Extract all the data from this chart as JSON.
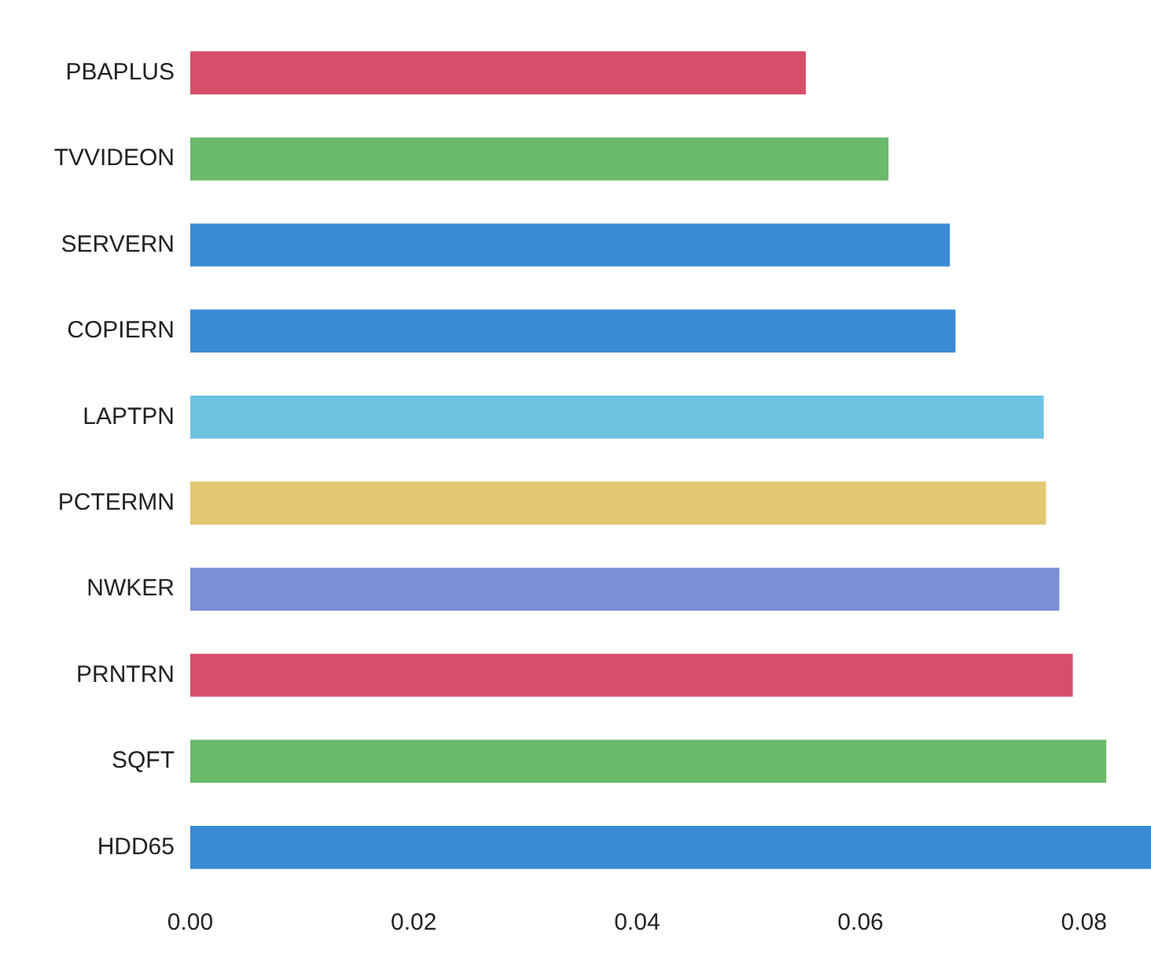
{
  "chart_data": {
    "type": "bar",
    "orientation": "horizontal",
    "categories": [
      "PBAPLUS",
      "TVVIDEON",
      "SERVERN",
      "COPIERN",
      "LAPTPN",
      "PCTERMN",
      "NWKER",
      "PRNTRN",
      "SQFT",
      "HDD65"
    ],
    "values": [
      0.0551,
      0.0625,
      0.068,
      0.0685,
      0.0764,
      0.0766,
      0.0778,
      0.079,
      0.082,
      0.086
    ],
    "colors": [
      "#d64e6a",
      "#6aba6a",
      "#3a8bd4",
      "#3a8bd4",
      "#6ec3e3",
      "#e2c872",
      "#7b8ed8",
      "#d64e6a",
      "#6aba6a",
      "#3a8bd4"
    ],
    "xlim": [
      0,
      0.086
    ],
    "xticks": [
      {
        "value": 0,
        "label": "0.00"
      },
      {
        "value": 0.02,
        "label": "0.02"
      },
      {
        "value": 0.04,
        "label": "0.04"
      },
      {
        "value": 0.06,
        "label": "0.06"
      },
      {
        "value": 0.08,
        "label": "0.08"
      }
    ],
    "grid": false,
    "legend": false
  }
}
